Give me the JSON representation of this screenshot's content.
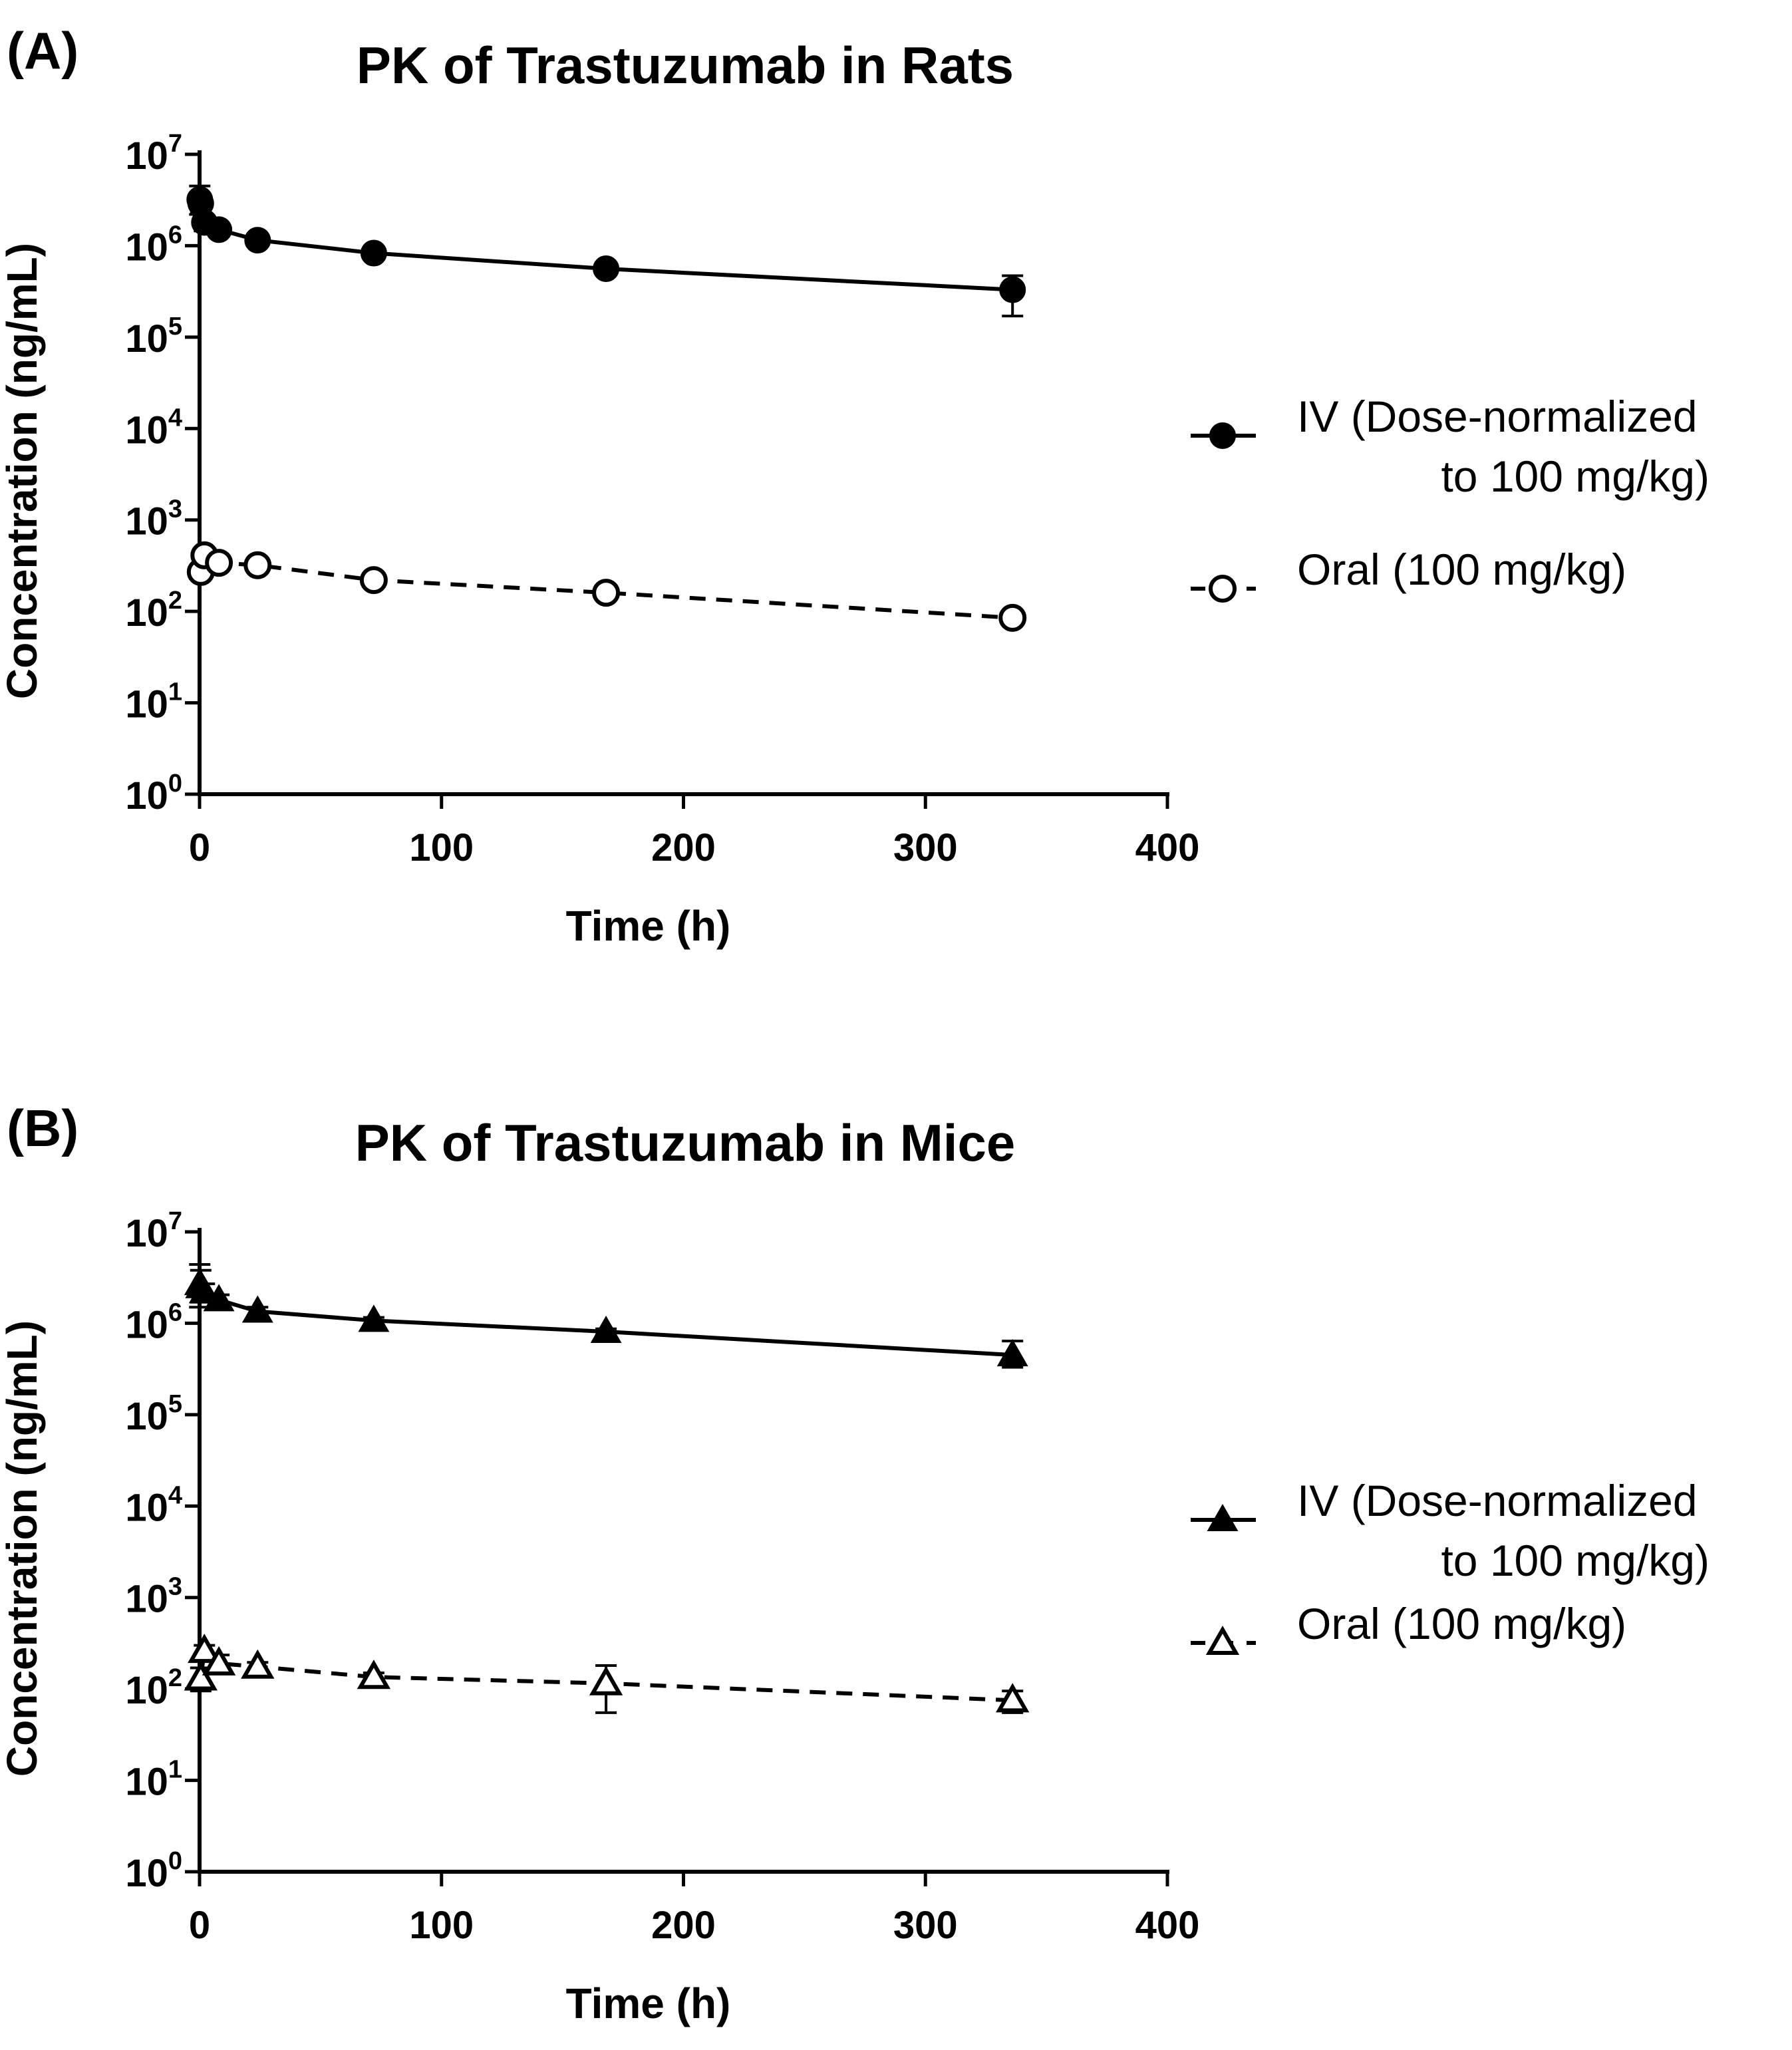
{
  "chart_data": [
    {
      "panel_label": "(A)",
      "type": "line",
      "title": "PK of Trastuzumab in Rats",
      "xlabel": "Time (h)",
      "ylabel": "Concentration (ng/mL)",
      "xlim": [
        0,
        400
      ],
      "ylim": [
        1,
        10000000
      ],
      "yscale": "log",
      "x_ticks": [
        "0",
        "100",
        "200",
        "300",
        "400"
      ],
      "y_tick_base": "10",
      "y_tick_exponents": [
        "0",
        "1",
        "2",
        "3",
        "4",
        "5",
        "6",
        "7"
      ],
      "grid": false,
      "legend_position": "right",
      "legend_entries": [
        {
          "lines": [
            "IV (Dose-normalized",
            "to 100 mg/kg)"
          ]
        },
        {
          "lines": [
            "Oral (100 mg/kg)"
          ]
        }
      ],
      "series": [
        {
          "name": "IV (Dose-normalized to 100 mg/kg)",
          "marker": "filled-circle",
          "line": "solid",
          "x": [
            0.083,
            0.5,
            2,
            8,
            24,
            72,
            168,
            336
          ],
          "y": [
            3200000,
            2900000,
            1800000,
            1500000,
            1150000,
            830000,
            560000,
            330000
          ],
          "y_err_low": [
            2200000,
            2300000,
            1450000,
            1300000,
            1050000,
            780000,
            520000,
            170000
          ],
          "y_err_high": [
            4500000,
            3600000,
            2100000,
            1700000,
            1250000,
            880000,
            600000,
            470000
          ]
        },
        {
          "name": "Oral (100 mg/kg)",
          "marker": "open-circle",
          "line": "dashed",
          "x": [
            0.5,
            2,
            8,
            24,
            72,
            168,
            336
          ],
          "y": [
            270,
            410,
            340,
            320,
            220,
            160,
            85
          ],
          "y_err_low": [
            250,
            380,
            320,
            300,
            205,
            150,
            78
          ],
          "y_err_high": [
            290,
            440,
            360,
            340,
            235,
            170,
            92
          ]
        }
      ]
    },
    {
      "panel_label": "(B)",
      "type": "line",
      "title": "PK of Trastuzumab in Mice",
      "xlabel": "Time (h)",
      "ylabel": "Concentration (ng/mL)",
      "xlim": [
        0,
        400
      ],
      "ylim": [
        1,
        10000000
      ],
      "yscale": "log",
      "x_ticks": [
        "0",
        "100",
        "200",
        "300",
        "400"
      ],
      "y_tick_base": "10",
      "y_tick_exponents": [
        "0",
        "1",
        "2",
        "3",
        "4",
        "5",
        "6",
        "7"
      ],
      "grid": false,
      "legend_position": "right",
      "legend_entries": [
        {
          "lines": [
            "IV (Dose-normalized",
            "to 100 mg/kg)"
          ]
        },
        {
          "lines": [
            "Oral (100 mg/kg)"
          ]
        }
      ],
      "series": [
        {
          "name": "IV (Dose-normalized to 100 mg/kg)",
          "marker": "filled-triangle",
          "line": "solid",
          "x": [
            0.083,
            0.5,
            2,
            8,
            24,
            72,
            168,
            336
          ],
          "y": [
            2700000,
            2500000,
            2200000,
            1800000,
            1350000,
            1070000,
            810000,
            450000
          ],
          "y_err_low": [
            1500000,
            1700000,
            1800000,
            1550000,
            1200000,
            980000,
            750000,
            330000
          ],
          "y_err_high": [
            4400000,
            3800000,
            2700000,
            2050000,
            1500000,
            1160000,
            870000,
            640000
          ]
        },
        {
          "name": "Oral (100 mg/kg)",
          "marker": "open-triangle",
          "line": "dashed",
          "x": [
            0.5,
            2,
            8,
            24,
            72,
            168,
            336
          ],
          "y": [
            130,
            260,
            190,
            175,
            135,
            115,
            75
          ],
          "y_err_low": [
            95,
            220,
            160,
            155,
            120,
            55,
            55
          ],
          "y_err_high": [
            170,
            300,
            235,
            195,
            150,
            180,
            95
          ]
        }
      ]
    }
  ]
}
